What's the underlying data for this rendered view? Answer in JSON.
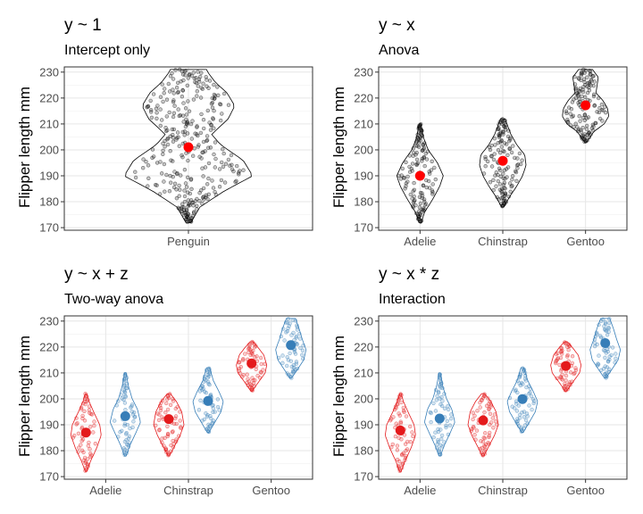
{
  "chart_data": [
    {
      "type": "scatter",
      "title": "y ~ 1",
      "subtitle": "Intercept only",
      "ylabel": "Flipper length mm",
      "xlabel": "",
      "ylim": [
        169,
        232
      ],
      "yticks": [
        170,
        180,
        190,
        200,
        210,
        220,
        230
      ],
      "grid": true,
      "categories": [
        "Penguin"
      ],
      "groups": [
        {
          "category": "Penguin",
          "color": "#000000",
          "min": 172,
          "max": 231,
          "mean": 201.0,
          "profile": [
            [
              172,
              0.04
            ],
            [
              178,
              0.18
            ],
            [
              184,
              0.55
            ],
            [
              190,
              1.0
            ],
            [
              196,
              0.85
            ],
            [
              202,
              0.5
            ],
            [
              206,
              0.36
            ],
            [
              212,
              0.62
            ],
            [
              217,
              0.72
            ],
            [
              222,
              0.6
            ],
            [
              226,
              0.42
            ],
            [
              230,
              0.3
            ],
            [
              231,
              0.28
            ]
          ]
        }
      ]
    },
    {
      "type": "scatter",
      "title": "y ~ x",
      "subtitle": "Anova",
      "ylabel": "Flipper length mm",
      "xlabel": "",
      "ylim": [
        169,
        232
      ],
      "yticks": [
        170,
        180,
        190,
        200,
        210,
        220,
        230
      ],
      "grid": true,
      "categories": [
        "Adelie",
        "Chinstrap",
        "Gentoo"
      ],
      "groups": [
        {
          "category": "Adelie",
          "color": "#000000",
          "min": 172,
          "max": 210,
          "mean": 190.0,
          "profile": [
            [
              172,
              0.05
            ],
            [
              176,
              0.2
            ],
            [
              181,
              0.55
            ],
            [
              186,
              0.85
            ],
            [
              190,
              1.0
            ],
            [
              195,
              0.75
            ],
            [
              200,
              0.35
            ],
            [
              205,
              0.14
            ],
            [
              210,
              0.04
            ]
          ]
        },
        {
          "category": "Chinstrap",
          "color": "#000000",
          "min": 178,
          "max": 212,
          "mean": 195.8,
          "profile": [
            [
              178,
              0.05
            ],
            [
              182,
              0.3
            ],
            [
              186,
              0.6
            ],
            [
              190,
              0.85
            ],
            [
              194,
              1.0
            ],
            [
              198,
              0.95
            ],
            [
              202,
              0.6
            ],
            [
              206,
              0.35
            ],
            [
              210,
              0.18
            ],
            [
              212,
              0.1
            ]
          ]
        },
        {
          "category": "Gentoo",
          "color": "#000000",
          "min": 203,
          "max": 231,
          "mean": 217.2,
          "profile": [
            [
              203,
              0.05
            ],
            [
              207,
              0.35
            ],
            [
              210,
              0.8
            ],
            [
              213,
              1.0
            ],
            [
              216,
              0.95
            ],
            [
              219,
              0.75
            ],
            [
              222,
              0.45
            ],
            [
              225,
              0.5
            ],
            [
              228,
              0.55
            ],
            [
              231,
              0.3
            ]
          ]
        }
      ]
    },
    {
      "type": "scatter",
      "title": "y ~ x + z",
      "subtitle": "Two-way anova",
      "ylabel": "Flipper length mm",
      "xlabel": "",
      "ylim": [
        169,
        232
      ],
      "yticks": [
        170,
        180,
        190,
        200,
        210,
        220,
        230
      ],
      "grid": true,
      "categories": [
        "Adelie",
        "Chinstrap",
        "Gentoo"
      ],
      "series": [
        {
          "color": "#e41a1c",
          "groups": [
            {
              "category": "Adelie",
              "min": 172,
              "max": 202,
              "mean": 187.0,
              "profile": [
                [
                  172,
                  0.05
                ],
                [
                  176,
                  0.3
                ],
                [
                  181,
                  0.7
                ],
                [
                  186,
                  1.0
                ],
                [
                  190,
                  0.9
                ],
                [
                  195,
                  0.5
                ],
                [
                  199,
                  0.2
                ],
                [
                  202,
                  0.05
                ]
              ]
            },
            {
              "category": "Chinstrap",
              "min": 178,
              "max": 202,
              "mean": 192.2,
              "profile": [
                [
                  178,
                  0.05
                ],
                [
                  182,
                  0.4
                ],
                [
                  186,
                  0.75
                ],
                [
                  190,
                  1.0
                ],
                [
                  195,
                  0.85
                ],
                [
                  199,
                  0.5
                ],
                [
                  202,
                  0.1
                ]
              ]
            },
            {
              "category": "Gentoo",
              "min": 203,
              "max": 222,
              "mean": 213.7,
              "profile": [
                [
                  203,
                  0.05
                ],
                [
                  206,
                  0.4
                ],
                [
                  210,
                  0.9
                ],
                [
                  213,
                  1.0
                ],
                [
                  217,
                  0.8
                ],
                [
                  220,
                  0.4
                ],
                [
                  222,
                  0.1
                ]
              ]
            }
          ]
        },
        {
          "color": "#377eb8",
          "groups": [
            {
              "category": "Adelie",
              "min": 178,
              "max": 210,
              "mean": 193.3,
              "profile": [
                [
                  178,
                  0.05
                ],
                [
                  182,
                  0.3
                ],
                [
                  187,
                  0.7
                ],
                [
                  191,
                  1.0
                ],
                [
                  196,
                  0.8
                ],
                [
                  200,
                  0.45
                ],
                [
                  205,
                  0.2
                ],
                [
                  210,
                  0.05
                ]
              ]
            },
            {
              "category": "Chinstrap",
              "min": 187,
              "max": 212,
              "mean": 199.2,
              "profile": [
                [
                  187,
                  0.05
                ],
                [
                  190,
                  0.35
                ],
                [
                  195,
                  0.85
                ],
                [
                  199,
                  1.0
                ],
                [
                  203,
                  0.7
                ],
                [
                  207,
                  0.35
                ],
                [
                  212,
                  0.1
                ]
              ]
            },
            {
              "category": "Gentoo",
              "min": 208,
              "max": 231,
              "mean": 220.7,
              "profile": [
                [
                  208,
                  0.05
                ],
                [
                  211,
                  0.4
                ],
                [
                  215,
                  0.85
                ],
                [
                  219,
                  1.0
                ],
                [
                  223,
                  0.75
                ],
                [
                  227,
                  0.55
                ],
                [
                  231,
                  0.3
                ]
              ]
            }
          ]
        }
      ]
    },
    {
      "type": "scatter",
      "title": "y ~ x * z",
      "subtitle": "Interaction",
      "ylabel": "Flipper length mm",
      "xlabel": "",
      "ylim": [
        169,
        232
      ],
      "yticks": [
        170,
        180,
        190,
        200,
        210,
        220,
        230
      ],
      "grid": true,
      "categories": [
        "Adelie",
        "Chinstrap",
        "Gentoo"
      ],
      "series": [
        {
          "color": "#e41a1c",
          "groups": [
            {
              "category": "Adelie",
              "min": 172,
              "max": 202,
              "mean": 187.8,
              "profile": [
                [
                  172,
                  0.05
                ],
                [
                  176,
                  0.3
                ],
                [
                  181,
                  0.7
                ],
                [
                  186,
                  1.0
                ],
                [
                  190,
                  0.9
                ],
                [
                  195,
                  0.5
                ],
                [
                  199,
                  0.2
                ],
                [
                  202,
                  0.05
                ]
              ]
            },
            {
              "category": "Chinstrap",
              "min": 178,
              "max": 202,
              "mean": 191.7,
              "profile": [
                [
                  178,
                  0.05
                ],
                [
                  182,
                  0.4
                ],
                [
                  186,
                  0.75
                ],
                [
                  190,
                  1.0
                ],
                [
                  195,
                  0.85
                ],
                [
                  199,
                  0.5
                ],
                [
                  202,
                  0.1
                ]
              ]
            },
            {
              "category": "Gentoo",
              "min": 203,
              "max": 222,
              "mean": 212.7,
              "profile": [
                [
                  203,
                  0.05
                ],
                [
                  206,
                  0.4
                ],
                [
                  210,
                  0.9
                ],
                [
                  213,
                  1.0
                ],
                [
                  217,
                  0.8
                ],
                [
                  220,
                  0.4
                ],
                [
                  222,
                  0.1
                ]
              ]
            }
          ]
        },
        {
          "color": "#377eb8",
          "groups": [
            {
              "category": "Adelie",
              "min": 178,
              "max": 210,
              "mean": 192.4,
              "profile": [
                [
                  178,
                  0.05
                ],
                [
                  182,
                  0.3
                ],
                [
                  187,
                  0.7
                ],
                [
                  191,
                  1.0
                ],
                [
                  196,
                  0.8
                ],
                [
                  200,
                  0.45
                ],
                [
                  205,
                  0.2
                ],
                [
                  210,
                  0.05
                ]
              ]
            },
            {
              "category": "Chinstrap",
              "min": 187,
              "max": 212,
              "mean": 199.9,
              "profile": [
                [
                  187,
                  0.05
                ],
                [
                  190,
                  0.35
                ],
                [
                  195,
                  0.85
                ],
                [
                  199,
                  1.0
                ],
                [
                  203,
                  0.7
                ],
                [
                  207,
                  0.35
                ],
                [
                  212,
                  0.1
                ]
              ]
            },
            {
              "category": "Gentoo",
              "min": 208,
              "max": 231,
              "mean": 221.5,
              "profile": [
                [
                  208,
                  0.05
                ],
                [
                  211,
                  0.4
                ],
                [
                  215,
                  0.85
                ],
                [
                  219,
                  1.0
                ],
                [
                  223,
                  0.75
                ],
                [
                  227,
                  0.55
                ],
                [
                  231,
                  0.3
                ]
              ]
            }
          ]
        }
      ]
    }
  ]
}
